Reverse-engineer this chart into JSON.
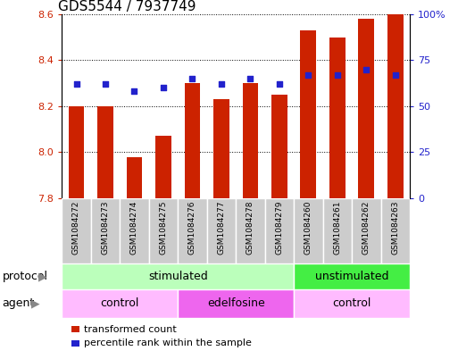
{
  "title": "GDS5544 / 7937749",
  "samples": [
    "GSM1084272",
    "GSM1084273",
    "GSM1084274",
    "GSM1084275",
    "GSM1084276",
    "GSM1084277",
    "GSM1084278",
    "GSM1084279",
    "GSM1084260",
    "GSM1084261",
    "GSM1084262",
    "GSM1084263"
  ],
  "bar_values": [
    8.2,
    8.2,
    7.98,
    8.07,
    8.3,
    8.23,
    8.3,
    8.25,
    8.53,
    8.5,
    8.58,
    8.6
  ],
  "percentile_values": [
    62,
    62,
    58,
    60,
    65,
    62,
    65,
    62,
    67,
    67,
    70,
    67
  ],
  "ymin": 7.8,
  "ymax": 8.6,
  "y_ticks": [
    7.8,
    8.0,
    8.2,
    8.4,
    8.6
  ],
  "y2min": 0,
  "y2max": 100,
  "y2_ticks": [
    0,
    25,
    50,
    75,
    100
  ],
  "y2_tick_labels": [
    "0",
    "25",
    "50",
    "75",
    "100%"
  ],
  "bar_color": "#cc2200",
  "dot_color": "#2222cc",
  "cell_color": "#cccccc",
  "protocol_labels": [
    {
      "text": "stimulated",
      "start": 0,
      "end": 8,
      "color": "#bbffbb"
    },
    {
      "text": "unstimulated",
      "start": 8,
      "end": 12,
      "color": "#44ee44"
    }
  ],
  "agent_labels": [
    {
      "text": "control",
      "start": 0,
      "end": 4,
      "color": "#ffbbff"
    },
    {
      "text": "edelfosine",
      "start": 4,
      "end": 8,
      "color": "#ee66ee"
    },
    {
      "text": "control",
      "start": 8,
      "end": 12,
      "color": "#ffbbff"
    }
  ],
  "legend_bar_label": "transformed count",
  "legend_dot_label": "percentile rank within the sample",
  "xlabel_protocol": "protocol",
  "xlabel_agent": "agent",
  "title_fontsize": 11,
  "tick_fontsize": 8,
  "label_fontsize": 9,
  "sample_fontsize": 6.5,
  "arrow_color": "#888888"
}
